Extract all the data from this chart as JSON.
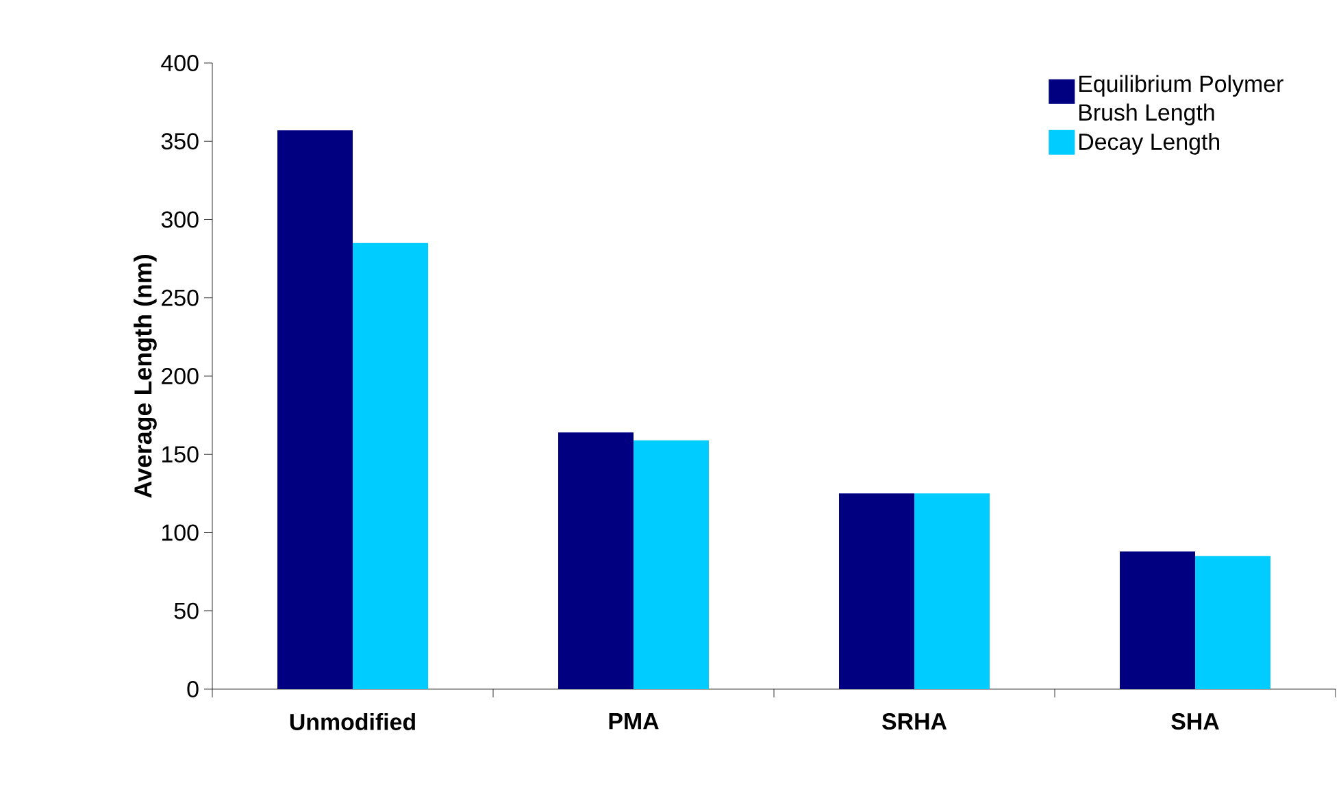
{
  "chart_data": {
    "type": "bar",
    "ylabel": "Average Length (nm)",
    "categories": [
      "Unmodified",
      "PMA",
      "SRHA",
      "SHA"
    ],
    "series": [
      {
        "name": "Equilibrium Polymer Brush Length",
        "color": "#000080",
        "values": [
          357,
          164,
          125,
          88
        ]
      },
      {
        "name": "Decay Length",
        "color": "#00ccff",
        "values": [
          285,
          159,
          125,
          85
        ]
      }
    ],
    "ylim": [
      0,
      400
    ],
    "yticks": [
      0,
      50,
      100,
      150,
      200,
      250,
      300,
      350,
      400
    ],
    "grid": false,
    "legend": "top right"
  }
}
